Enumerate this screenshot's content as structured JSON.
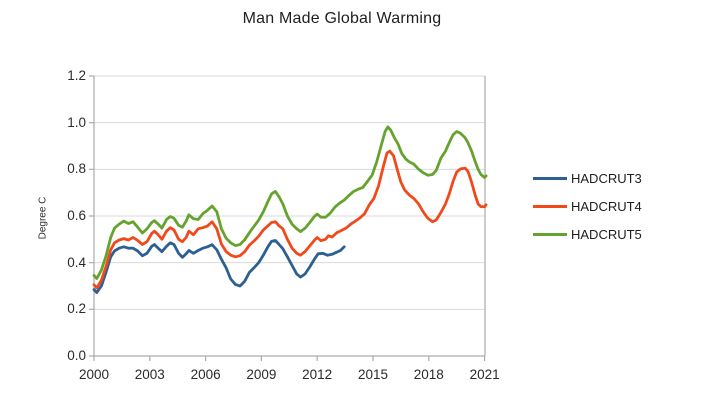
{
  "chart_data": {
    "type": "line",
    "title": "Man Made Global Warming",
    "ylabel": "Degree C",
    "xlabel": "",
    "ylim": [
      0.0,
      1.2
    ],
    "xlim": [
      2000,
      2021.1
    ],
    "y_ticks": [
      "0.0",
      "0.2",
      "0.4",
      "0.6",
      "0.8",
      "1.0",
      "1.2"
    ],
    "y_tick_values": [
      0.0,
      0.2,
      0.4,
      0.6,
      0.8,
      1.0,
      1.2
    ],
    "x_ticks": [
      "2000",
      "2003",
      "2006",
      "2009",
      "2012",
      "2015",
      "2018",
      "2021"
    ],
    "x_tick_values": [
      2000,
      2003,
      2006,
      2009,
      2012,
      2015,
      2018,
      2021
    ],
    "grid": "horizontal-only",
    "legend_position": "right",
    "frame_color": "#ababab",
    "grid_color": "#d9d9d9",
    "series": [
      {
        "name": "HADCRUT3",
        "color": "#2C5F92",
        "points": [
          [
            2000.0,
            0.285
          ],
          [
            2000.15,
            0.272
          ],
          [
            2000.4,
            0.3
          ],
          [
            2000.65,
            0.36
          ],
          [
            2000.9,
            0.425
          ],
          [
            2001.1,
            0.45
          ],
          [
            2001.35,
            0.462
          ],
          [
            2001.6,
            0.468
          ],
          [
            2001.85,
            0.462
          ],
          [
            2002.1,
            0.462
          ],
          [
            2002.35,
            0.45
          ],
          [
            2002.6,
            0.43
          ],
          [
            2002.85,
            0.44
          ],
          [
            2003.1,
            0.47
          ],
          [
            2003.25,
            0.478
          ],
          [
            2003.45,
            0.462
          ],
          [
            2003.65,
            0.447
          ],
          [
            2003.9,
            0.47
          ],
          [
            2004.1,
            0.485
          ],
          [
            2004.3,
            0.478
          ],
          [
            2004.55,
            0.44
          ],
          [
            2004.75,
            0.423
          ],
          [
            2004.95,
            0.438
          ],
          [
            2005.1,
            0.452
          ],
          [
            2005.35,
            0.44
          ],
          [
            2005.6,
            0.452
          ],
          [
            2005.85,
            0.462
          ],
          [
            2006.1,
            0.468
          ],
          [
            2006.35,
            0.477
          ],
          [
            2006.6,
            0.455
          ],
          [
            2006.85,
            0.415
          ],
          [
            2007.1,
            0.378
          ],
          [
            2007.35,
            0.33
          ],
          [
            2007.6,
            0.307
          ],
          [
            2007.85,
            0.3
          ],
          [
            2008.1,
            0.32
          ],
          [
            2008.35,
            0.358
          ],
          [
            2008.6,
            0.378
          ],
          [
            2008.85,
            0.4
          ],
          [
            2009.1,
            0.432
          ],
          [
            2009.35,
            0.468
          ],
          [
            2009.55,
            0.492
          ],
          [
            2009.75,
            0.495
          ],
          [
            2009.95,
            0.478
          ],
          [
            2010.15,
            0.46
          ],
          [
            2010.4,
            0.425
          ],
          [
            2010.65,
            0.388
          ],
          [
            2010.9,
            0.352
          ],
          [
            2011.1,
            0.338
          ],
          [
            2011.35,
            0.352
          ],
          [
            2011.6,
            0.382
          ],
          [
            2011.85,
            0.415
          ],
          [
            2012.05,
            0.438
          ],
          [
            2012.3,
            0.44
          ],
          [
            2012.55,
            0.432
          ],
          [
            2012.8,
            0.436
          ],
          [
            2013.05,
            0.445
          ],
          [
            2013.25,
            0.452
          ],
          [
            2013.45,
            0.468
          ]
        ]
      },
      {
        "name": "HADCRUT4",
        "color": "#F2491B",
        "points": [
          [
            2000.0,
            0.305
          ],
          [
            2000.15,
            0.292
          ],
          [
            2000.4,
            0.325
          ],
          [
            2000.65,
            0.385
          ],
          [
            2000.9,
            0.455
          ],
          [
            2001.1,
            0.485
          ],
          [
            2001.35,
            0.497
          ],
          [
            2001.6,
            0.503
          ],
          [
            2001.85,
            0.497
          ],
          [
            2002.1,
            0.508
          ],
          [
            2002.35,
            0.495
          ],
          [
            2002.6,
            0.478
          ],
          [
            2002.85,
            0.49
          ],
          [
            2003.1,
            0.525
          ],
          [
            2003.25,
            0.535
          ],
          [
            2003.45,
            0.52
          ],
          [
            2003.65,
            0.5
          ],
          [
            2003.9,
            0.535
          ],
          [
            2004.1,
            0.55
          ],
          [
            2004.3,
            0.54
          ],
          [
            2004.55,
            0.5
          ],
          [
            2004.75,
            0.49
          ],
          [
            2004.95,
            0.508
          ],
          [
            2005.1,
            0.535
          ],
          [
            2005.35,
            0.52
          ],
          [
            2005.6,
            0.545
          ],
          [
            2005.85,
            0.55
          ],
          [
            2006.1,
            0.557
          ],
          [
            2006.35,
            0.575
          ],
          [
            2006.6,
            0.545
          ],
          [
            2006.85,
            0.48
          ],
          [
            2007.1,
            0.448
          ],
          [
            2007.35,
            0.432
          ],
          [
            2007.6,
            0.425
          ],
          [
            2007.85,
            0.43
          ],
          [
            2008.1,
            0.447
          ],
          [
            2008.35,
            0.475
          ],
          [
            2008.6,
            0.493
          ],
          [
            2008.85,
            0.513
          ],
          [
            2009.1,
            0.54
          ],
          [
            2009.35,
            0.558
          ],
          [
            2009.55,
            0.572
          ],
          [
            2009.75,
            0.575
          ],
          [
            2009.95,
            0.558
          ],
          [
            2010.15,
            0.545
          ],
          [
            2010.4,
            0.5
          ],
          [
            2010.65,
            0.462
          ],
          [
            2010.9,
            0.44
          ],
          [
            2011.1,
            0.432
          ],
          [
            2011.35,
            0.448
          ],
          [
            2011.6,
            0.472
          ],
          [
            2011.85,
            0.496
          ],
          [
            2012.0,
            0.508
          ],
          [
            2012.2,
            0.494
          ],
          [
            2012.45,
            0.5
          ],
          [
            2012.6,
            0.515
          ],
          [
            2012.8,
            0.51
          ],
          [
            2013.05,
            0.528
          ],
          [
            2013.3,
            0.538
          ],
          [
            2013.55,
            0.548
          ],
          [
            2013.8,
            0.565
          ],
          [
            2014.05,
            0.578
          ],
          [
            2014.3,
            0.592
          ],
          [
            2014.55,
            0.61
          ],
          [
            2014.8,
            0.648
          ],
          [
            2015.05,
            0.675
          ],
          [
            2015.3,
            0.73
          ],
          [
            2015.55,
            0.81
          ],
          [
            2015.75,
            0.87
          ],
          [
            2015.9,
            0.878
          ],
          [
            2016.1,
            0.858
          ],
          [
            2016.3,
            0.8
          ],
          [
            2016.5,
            0.745
          ],
          [
            2016.7,
            0.712
          ],
          [
            2016.95,
            0.69
          ],
          [
            2017.2,
            0.675
          ],
          [
            2017.45,
            0.652
          ],
          [
            2017.7,
            0.618
          ],
          [
            2017.95,
            0.59
          ],
          [
            2018.2,
            0.575
          ],
          [
            2018.4,
            0.583
          ],
          [
            2018.65,
            0.615
          ],
          [
            2018.9,
            0.652
          ],
          [
            2019.1,
            0.695
          ],
          [
            2019.3,
            0.748
          ],
          [
            2019.5,
            0.788
          ],
          [
            2019.7,
            0.802
          ],
          [
            2019.95,
            0.805
          ],
          [
            2020.1,
            0.792
          ],
          [
            2020.3,
            0.745
          ],
          [
            2020.5,
            0.688
          ],
          [
            2020.65,
            0.652
          ],
          [
            2020.8,
            0.64
          ],
          [
            2021.0,
            0.64
          ],
          [
            2021.08,
            0.648
          ]
        ]
      },
      {
        "name": "HADCRUT5",
        "color": "#66A32E",
        "points": [
          [
            2000.0,
            0.345
          ],
          [
            2000.15,
            0.332
          ],
          [
            2000.4,
            0.368
          ],
          [
            2000.65,
            0.43
          ],
          [
            2000.9,
            0.508
          ],
          [
            2001.1,
            0.548
          ],
          [
            2001.35,
            0.565
          ],
          [
            2001.6,
            0.578
          ],
          [
            2001.85,
            0.568
          ],
          [
            2002.1,
            0.575
          ],
          [
            2002.35,
            0.552
          ],
          [
            2002.6,
            0.527
          ],
          [
            2002.85,
            0.545
          ],
          [
            2003.1,
            0.572
          ],
          [
            2003.25,
            0.58
          ],
          [
            2003.45,
            0.565
          ],
          [
            2003.65,
            0.548
          ],
          [
            2003.9,
            0.585
          ],
          [
            2004.1,
            0.598
          ],
          [
            2004.3,
            0.59
          ],
          [
            2004.55,
            0.56
          ],
          [
            2004.75,
            0.552
          ],
          [
            2004.95,
            0.578
          ],
          [
            2005.1,
            0.605
          ],
          [
            2005.35,
            0.588
          ],
          [
            2005.6,
            0.585
          ],
          [
            2005.85,
            0.61
          ],
          [
            2006.1,
            0.625
          ],
          [
            2006.35,
            0.643
          ],
          [
            2006.6,
            0.618
          ],
          [
            2006.85,
            0.545
          ],
          [
            2007.1,
            0.505
          ],
          [
            2007.35,
            0.485
          ],
          [
            2007.6,
            0.473
          ],
          [
            2007.85,
            0.478
          ],
          [
            2008.1,
            0.498
          ],
          [
            2008.35,
            0.528
          ],
          [
            2008.6,
            0.556
          ],
          [
            2008.85,
            0.582
          ],
          [
            2009.1,
            0.618
          ],
          [
            2009.35,
            0.662
          ],
          [
            2009.55,
            0.695
          ],
          [
            2009.75,
            0.705
          ],
          [
            2009.95,
            0.682
          ],
          [
            2010.15,
            0.652
          ],
          [
            2010.4,
            0.6
          ],
          [
            2010.65,
            0.565
          ],
          [
            2010.9,
            0.545
          ],
          [
            2011.1,
            0.533
          ],
          [
            2011.35,
            0.548
          ],
          [
            2011.6,
            0.572
          ],
          [
            2011.85,
            0.598
          ],
          [
            2012.0,
            0.608
          ],
          [
            2012.2,
            0.595
          ],
          [
            2012.45,
            0.595
          ],
          [
            2012.7,
            0.612
          ],
          [
            2012.95,
            0.638
          ],
          [
            2013.2,
            0.655
          ],
          [
            2013.45,
            0.668
          ],
          [
            2013.7,
            0.688
          ],
          [
            2013.95,
            0.705
          ],
          [
            2014.2,
            0.715
          ],
          [
            2014.45,
            0.722
          ],
          [
            2014.7,
            0.748
          ],
          [
            2014.95,
            0.775
          ],
          [
            2015.2,
            0.832
          ],
          [
            2015.45,
            0.905
          ],
          [
            2015.65,
            0.962
          ],
          [
            2015.8,
            0.982
          ],
          [
            2015.95,
            0.968
          ],
          [
            2016.15,
            0.935
          ],
          [
            2016.35,
            0.908
          ],
          [
            2016.55,
            0.868
          ],
          [
            2016.75,
            0.845
          ],
          [
            2016.95,
            0.832
          ],
          [
            2017.2,
            0.822
          ],
          [
            2017.45,
            0.8
          ],
          [
            2017.7,
            0.785
          ],
          [
            2017.95,
            0.775
          ],
          [
            2018.2,
            0.778
          ],
          [
            2018.4,
            0.795
          ],
          [
            2018.65,
            0.848
          ],
          [
            2018.9,
            0.878
          ],
          [
            2019.1,
            0.915
          ],
          [
            2019.3,
            0.948
          ],
          [
            2019.5,
            0.962
          ],
          [
            2019.7,
            0.955
          ],
          [
            2019.95,
            0.935
          ],
          [
            2020.1,
            0.915
          ],
          [
            2020.3,
            0.878
          ],
          [
            2020.5,
            0.832
          ],
          [
            2020.65,
            0.8
          ],
          [
            2020.8,
            0.778
          ],
          [
            2021.0,
            0.765
          ],
          [
            2021.08,
            0.772
          ]
        ]
      }
    ]
  }
}
